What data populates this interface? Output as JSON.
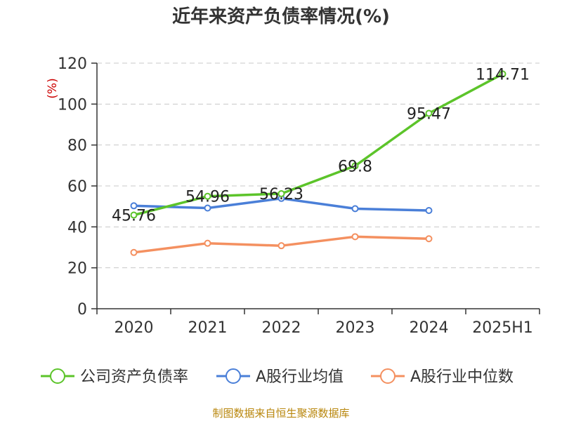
{
  "chart_data": {
    "type": "line",
    "title": "近年来资产负债率情况(%)",
    "ylabel": "(%)",
    "ylim": [
      0,
      120
    ],
    "yticks": [
      0,
      20,
      40,
      60,
      80,
      100,
      120
    ],
    "grid": true,
    "legend_position": "bottom",
    "categories": [
      "2020",
      "2021",
      "2022",
      "2023",
      "2024",
      "2025H1"
    ],
    "series": [
      {
        "name": "公司资产负债率",
        "color": "#5cc42a",
        "values": [
          45.76,
          54.96,
          56.23,
          69.8,
          95.47,
          114.71
        ],
        "labels": [
          "45.76",
          "54.96",
          "56.23",
          "69.8",
          "95.47",
          "114.71"
        ]
      },
      {
        "name": "A股行业均值",
        "color": "#4a7fd8",
        "values": [
          50.3,
          49.2,
          53.9,
          48.9,
          48.0,
          null
        ]
      },
      {
        "name": "A股行业中位数",
        "color": "#f49060",
        "values": [
          27.5,
          32.0,
          30.8,
          35.2,
          34.2,
          null
        ]
      }
    ]
  },
  "source": "制图数据来自恒生聚源数据库"
}
